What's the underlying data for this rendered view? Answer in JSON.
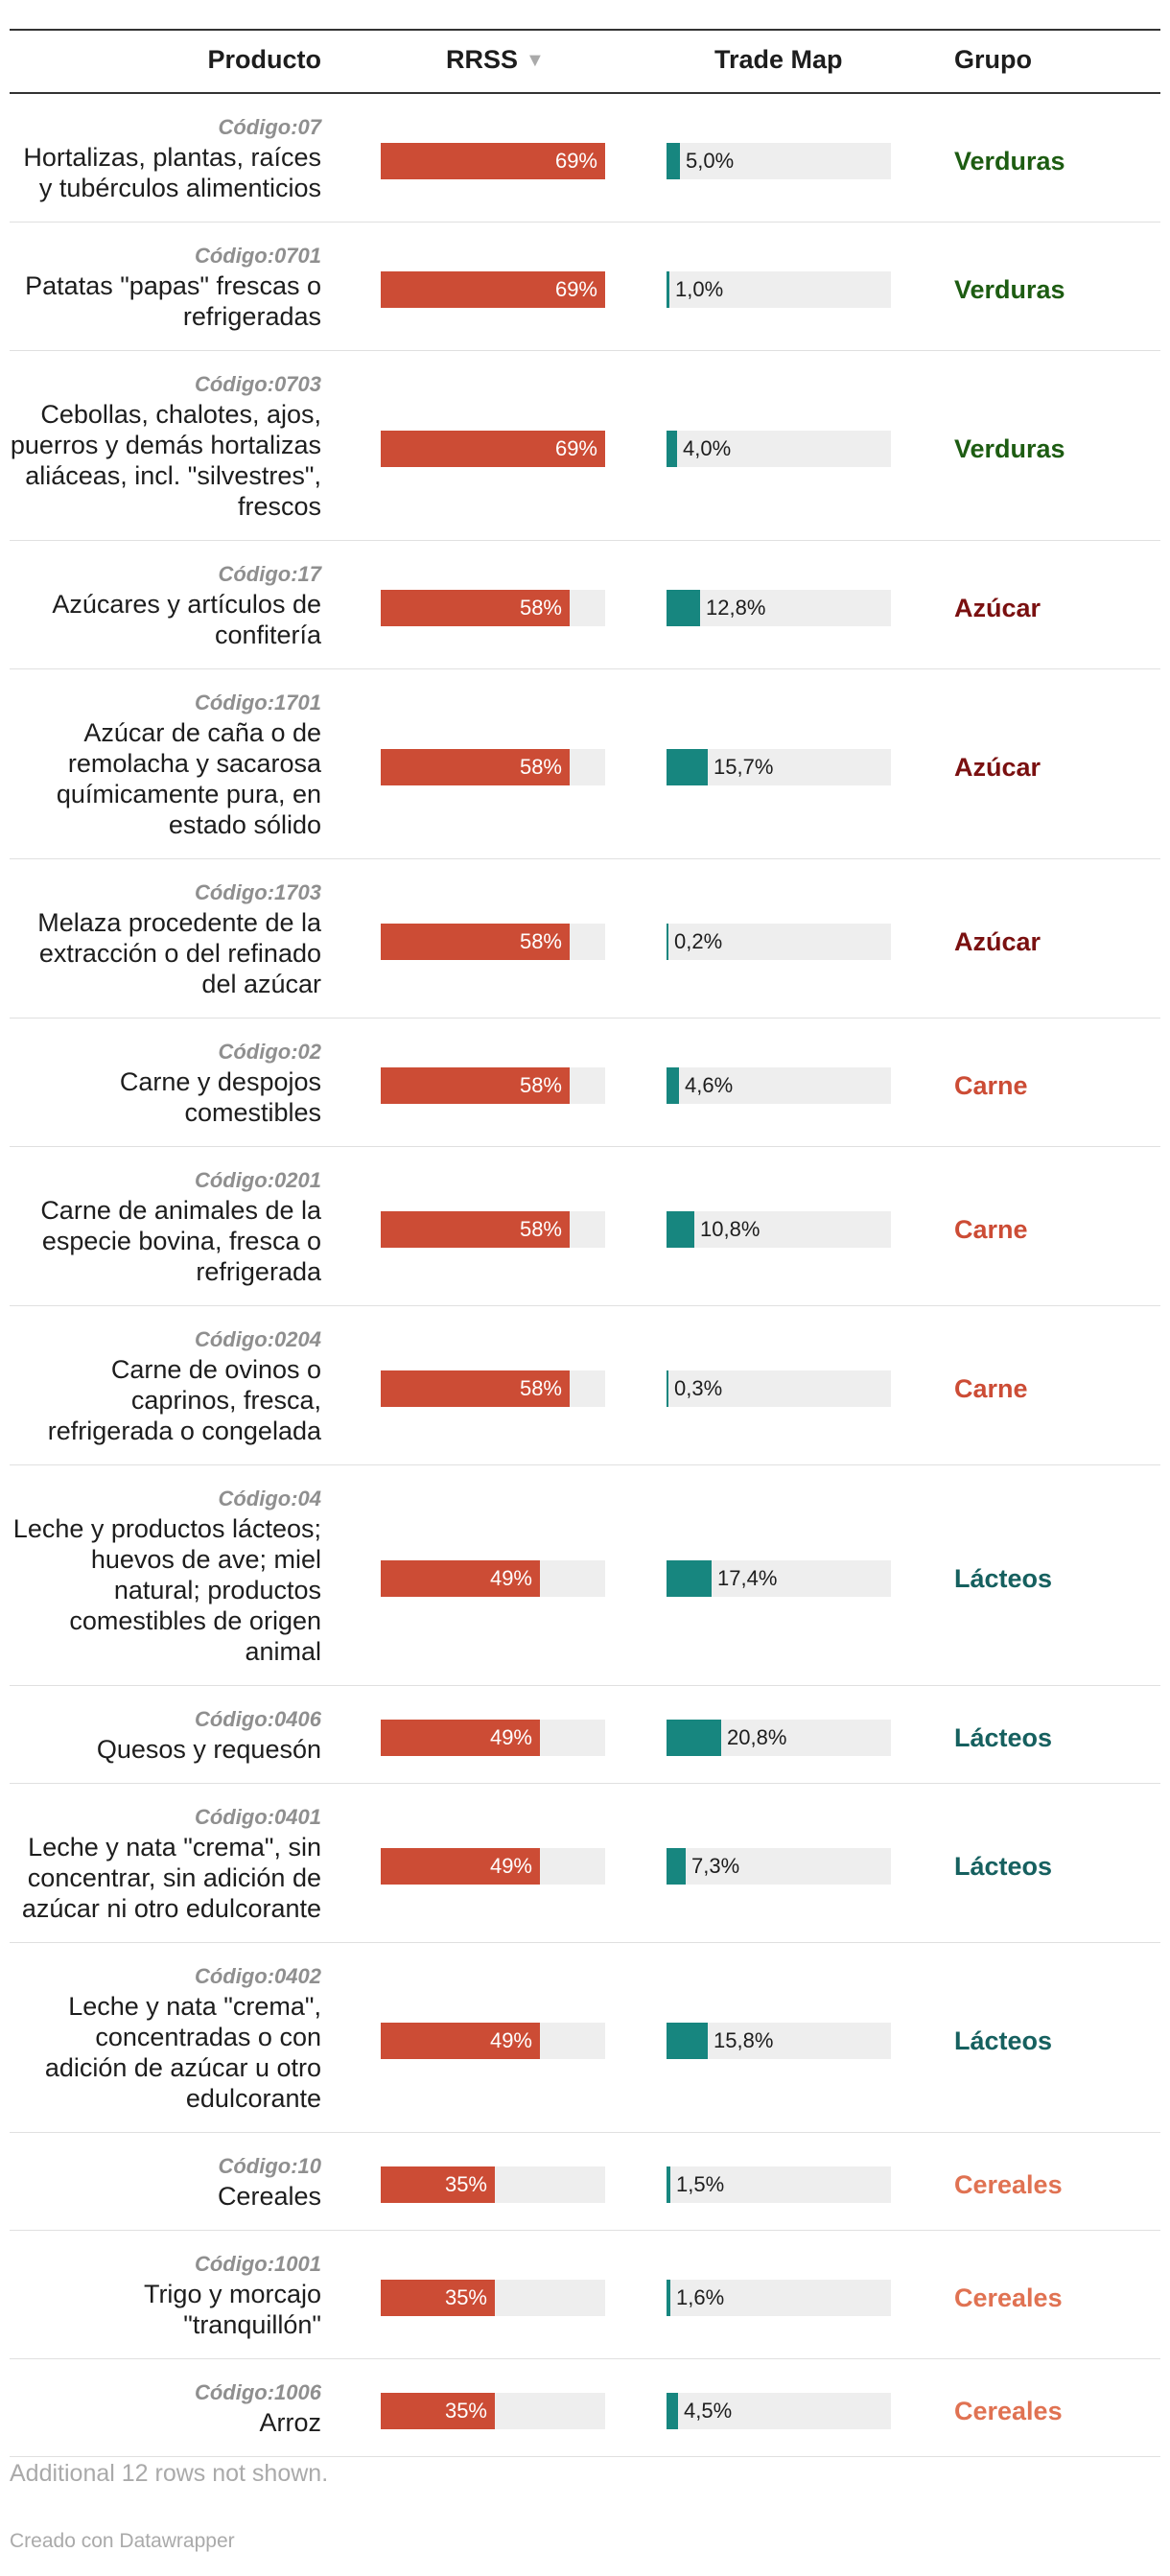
{
  "header": {
    "producto": "Producto",
    "rrss": "RRSS",
    "sort_icon": "▼",
    "trade": "Trade Map",
    "grupo": "Grupo"
  },
  "group_colors": {
    "Verduras": "#1d5c12",
    "Azúcar": "#7a1010",
    "Carne": "#cc4c35",
    "Lácteos": "#16605f",
    "Cereales": "#e07252"
  },
  "chart_data": {
    "type": "table",
    "columns": [
      "Producto",
      "RRSS",
      "Trade Map",
      "Grupo"
    ],
    "rows": [
      {
        "code": "Código:07",
        "name": "Hortalizas, plantas, raíces y tubérculos alimenticios",
        "rrss": 69,
        "rrss_label": "69%",
        "trade": 5.0,
        "trade_label": "5,0%",
        "grupo": "Verduras"
      },
      {
        "code": "Código:0701",
        "name": "Patatas \"papas\" frescas o refrigeradas",
        "rrss": 69,
        "rrss_label": "69%",
        "trade": 1.0,
        "trade_label": "1,0%",
        "grupo": "Verduras"
      },
      {
        "code": "Código:0703",
        "name": "Cebollas, chalotes, ajos, puerros y demás hortalizas aliáceas, incl. \"silvestres\", frescos",
        "rrss": 69,
        "rrss_label": "69%",
        "trade": 4.0,
        "trade_label": "4,0%",
        "grupo": "Verduras"
      },
      {
        "code": "Código:17",
        "name": "Azúcares y artículos de confitería",
        "rrss": 58,
        "rrss_label": "58%",
        "trade": 12.8,
        "trade_label": "12,8%",
        "grupo": "Azúcar"
      },
      {
        "code": "Código:1701",
        "name": "Azúcar de caña o de remolacha y sacarosa químicamente pura, en estado sólido",
        "rrss": 58,
        "rrss_label": "58%",
        "trade": 15.7,
        "trade_label": "15,7%",
        "grupo": "Azúcar"
      },
      {
        "code": "Código:1703",
        "name": "Melaza procedente de la extracción o del refinado del azúcar",
        "rrss": 58,
        "rrss_label": "58%",
        "trade": 0.2,
        "trade_label": "0,2%",
        "grupo": "Azúcar"
      },
      {
        "code": "Código:02",
        "name": "Carne y despojos comestibles",
        "rrss": 58,
        "rrss_label": "58%",
        "trade": 4.6,
        "trade_label": "4,6%",
        "grupo": "Carne"
      },
      {
        "code": "Código:0201",
        "name": "Carne de animales de la especie bovina, fresca o refrigerada",
        "rrss": 58,
        "rrss_label": "58%",
        "trade": 10.8,
        "trade_label": "10,8%",
        "grupo": "Carne"
      },
      {
        "code": "Código:0204",
        "name": "Carne de ovinos o caprinos, fresca, refrigerada o congelada",
        "rrss": 58,
        "rrss_label": "58%",
        "trade": 0.3,
        "trade_label": "0,3%",
        "grupo": "Carne"
      },
      {
        "code": "Código:04",
        "name": "Leche y productos lácteos; huevos de ave; miel natural; productos comestibles de origen animal",
        "rrss": 49,
        "rrss_label": "49%",
        "trade": 17.4,
        "trade_label": "17,4%",
        "grupo": "Lácteos"
      },
      {
        "code": "Código:0406",
        "name": "Quesos y requesón",
        "rrss": 49,
        "rrss_label": "49%",
        "trade": 20.8,
        "trade_label": "20,8%",
        "grupo": "Lácteos"
      },
      {
        "code": "Código:0401",
        "name": "Leche y nata \"crema\", sin concentrar, sin adición de azúcar ni otro edulcorante",
        "rrss": 49,
        "rrss_label": "49%",
        "trade": 7.3,
        "trade_label": "7,3%",
        "grupo": "Lácteos"
      },
      {
        "code": "Código:0402",
        "name": "Leche y nata \"crema\", concentradas o con adición de azúcar u otro edulcorante",
        "rrss": 49,
        "rrss_label": "49%",
        "trade": 15.8,
        "trade_label": "15,8%",
        "grupo": "Lácteos"
      },
      {
        "code": "Código:10",
        "name": "Cereales",
        "rrss": 35,
        "rrss_label": "35%",
        "trade": 1.5,
        "trade_label": "1,5%",
        "grupo": "Cereales"
      },
      {
        "code": "Código:1001",
        "name": "Trigo y morcajo \"tranquillón\"",
        "rrss": 35,
        "rrss_label": "35%",
        "trade": 1.6,
        "trade_label": "1,6%",
        "grupo": "Cereales"
      },
      {
        "code": "Código:1006",
        "name": "Arroz",
        "rrss": 35,
        "rrss_label": "35%",
        "trade": 4.5,
        "trade_label": "4,5%",
        "grupo": "Cereales"
      }
    ],
    "rrss_max": 69,
    "trade_max": 86
  },
  "footer": {
    "note": "Additional 12 rows not shown.",
    "credit": "Creado con Datawrapper"
  }
}
